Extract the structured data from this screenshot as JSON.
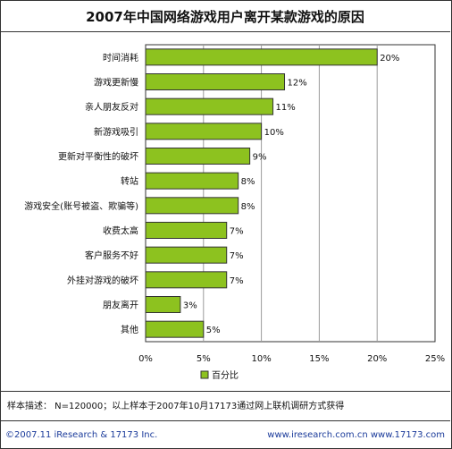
{
  "chart_data": {
    "type": "bar",
    "orientation": "horizontal",
    "title": "2007年中国网络游戏用户离开某款游戏的原因",
    "categories": [
      "时间消耗",
      "游戏更新慢",
      "亲人朋友反对",
      "新游戏吸引",
      "更新对平衡性的破坏",
      "转站",
      "游戏安全(账号被盗、欺骗等)",
      "收费太高",
      "客户服务不好",
      "外挂对游戏的破坏",
      "朋友离开",
      "其他"
    ],
    "values": [
      20,
      12,
      11,
      10,
      9,
      8,
      8,
      7,
      7,
      7,
      3,
      5
    ],
    "value_labels": [
      "20%",
      "12%",
      "11%",
      "10%",
      "9%",
      "8%",
      "8%",
      "7%",
      "7%",
      "7%",
      "3%",
      "5%"
    ],
    "xlim": [
      0,
      25
    ],
    "x_ticks": [
      "0%",
      "5%",
      "10%",
      "15%",
      "20%",
      "25%"
    ],
    "legend": "百分比",
    "legend_position": "bottom",
    "bar_color": "#8dc21f",
    "bar_border": "#333333"
  },
  "footnote": "样本描述：  N=120000；以上样本于2007年10月17173通过网上联机调研方式获得",
  "footer_left": "©2007.11  iResearch & 17173 Inc.",
  "footer_right": "www.iresearch.com.cn  www.17173.com"
}
